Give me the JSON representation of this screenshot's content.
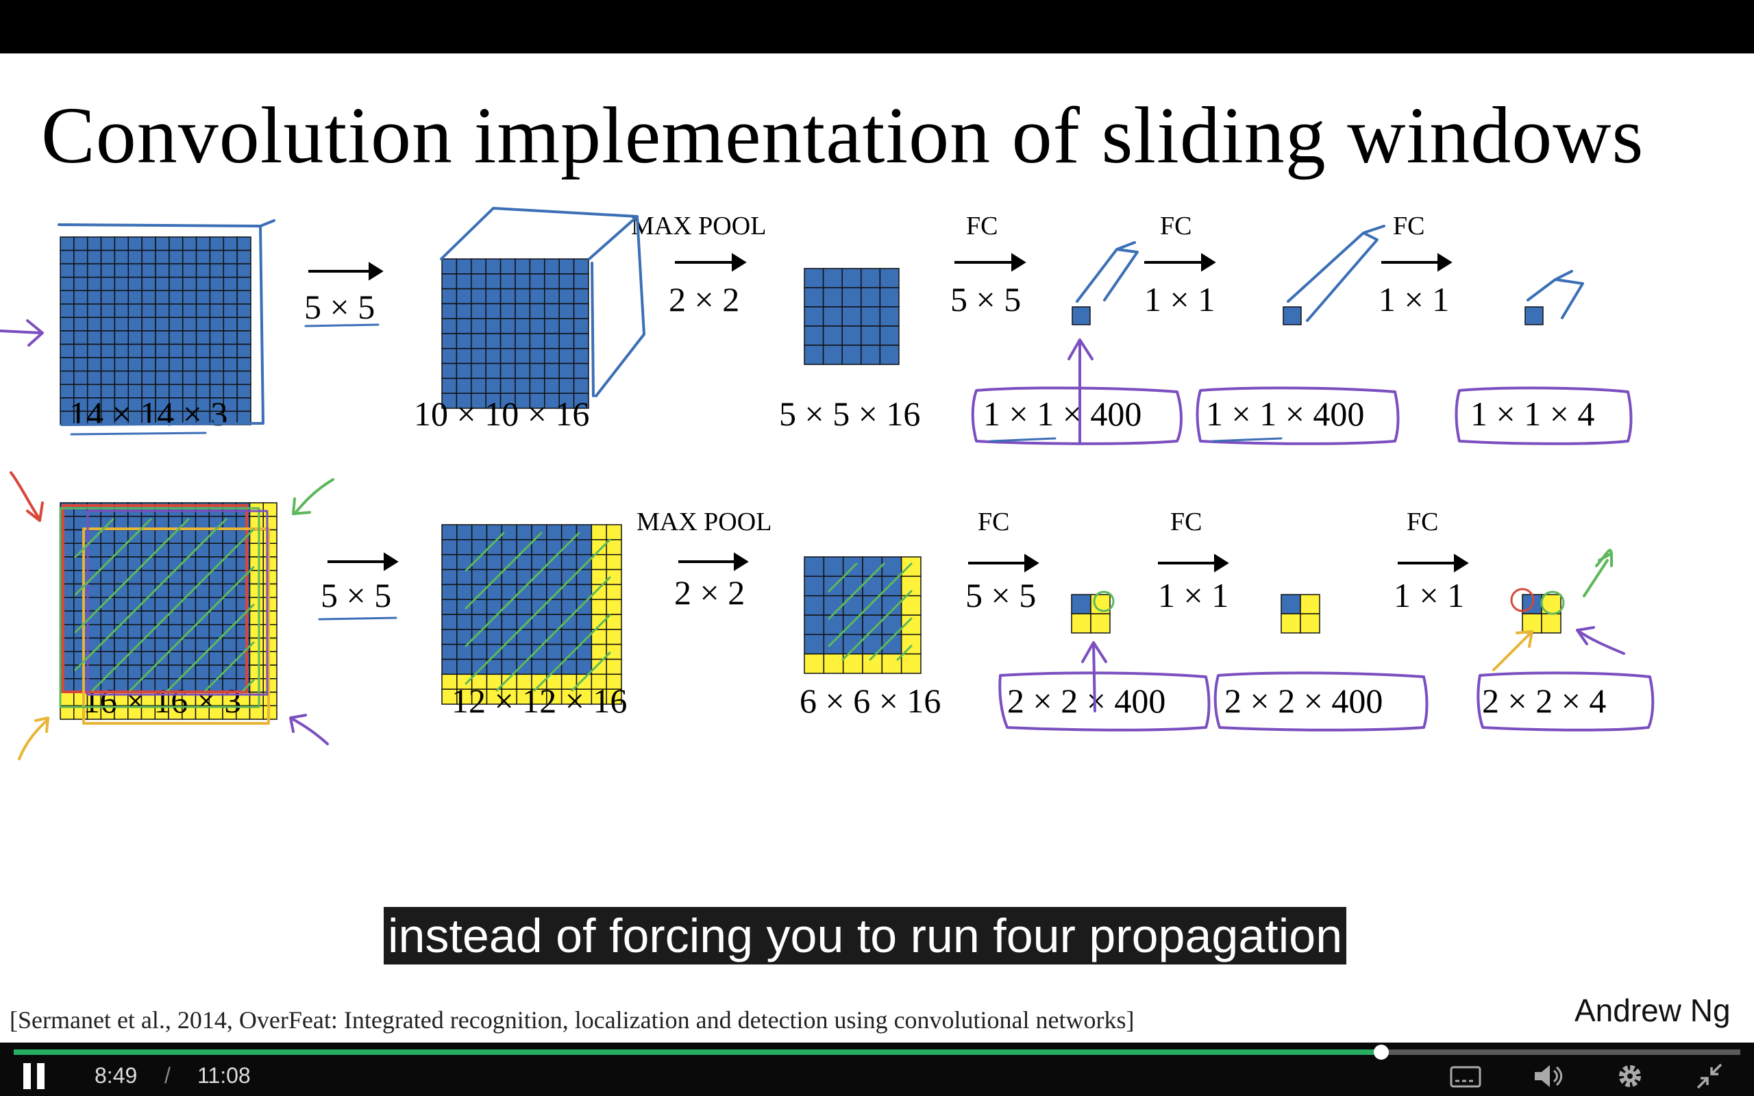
{
  "slide": {
    "title": "Convolution implementation of sliding windows",
    "top_row": {
      "input_dims": "14 × 14  × 3",
      "conv1": "5 × 5",
      "layer1_dims": "10 × 10 × 16",
      "pool_label": "MAX POOL",
      "pool_size": "2 × 2",
      "layer2_dims": "5 × 5 × 16",
      "fc1_label": "FC",
      "fc1_size": "5 × 5",
      "fc1_dims": "1 × 1 × 400",
      "fc2_label": "FC",
      "fc2_size": "1 × 1",
      "fc2_dims": "1 × 1 × 400",
      "fc3_label": "FC",
      "fc3_size": "1 × 1",
      "out_dims": "1 × 1 × 4"
    },
    "bottom_row": {
      "input_dims": "16 × 16 × 3",
      "conv1": "5 × 5",
      "layer1_dims": "12 × 12 × 16",
      "pool_label": "MAX POOL",
      "pool_size": "2 × 2",
      "layer2_dims": "6 × 6 × 16",
      "fc1_label": "FC",
      "fc1_size": "5 × 5",
      "fc1_dims": "2 × 2 × 400",
      "fc2_label": "FC",
      "fc2_size": "1 × 1",
      "fc2_dims": "2 × 2 × 400",
      "fc3_label": "FC",
      "fc3_size": "1 × 1",
      "out_dims": "2 × 2 × 4"
    },
    "citation": "[Sermanet et al., 2014, OverFeat: Integrated recognition, localization and detection using convolutional networks]",
    "author": "Andrew Ng",
    "colors": {
      "blue": "#3b6fb6",
      "yellow": "#fff23a",
      "annotation_purple": "#7b4fc0",
      "annotation_green": "#5cb85c"
    }
  },
  "subtitle": "instead of forcing you to run four propagation",
  "player": {
    "current_time": "8:49",
    "separator": "/",
    "duration": "11:08",
    "progress_fraction": 0.792,
    "progress_color": "#27ae60",
    "icons": [
      "pause-icon",
      "captions-icon",
      "volume-icon",
      "settings-icon",
      "exit-fullscreen-icon"
    ]
  }
}
